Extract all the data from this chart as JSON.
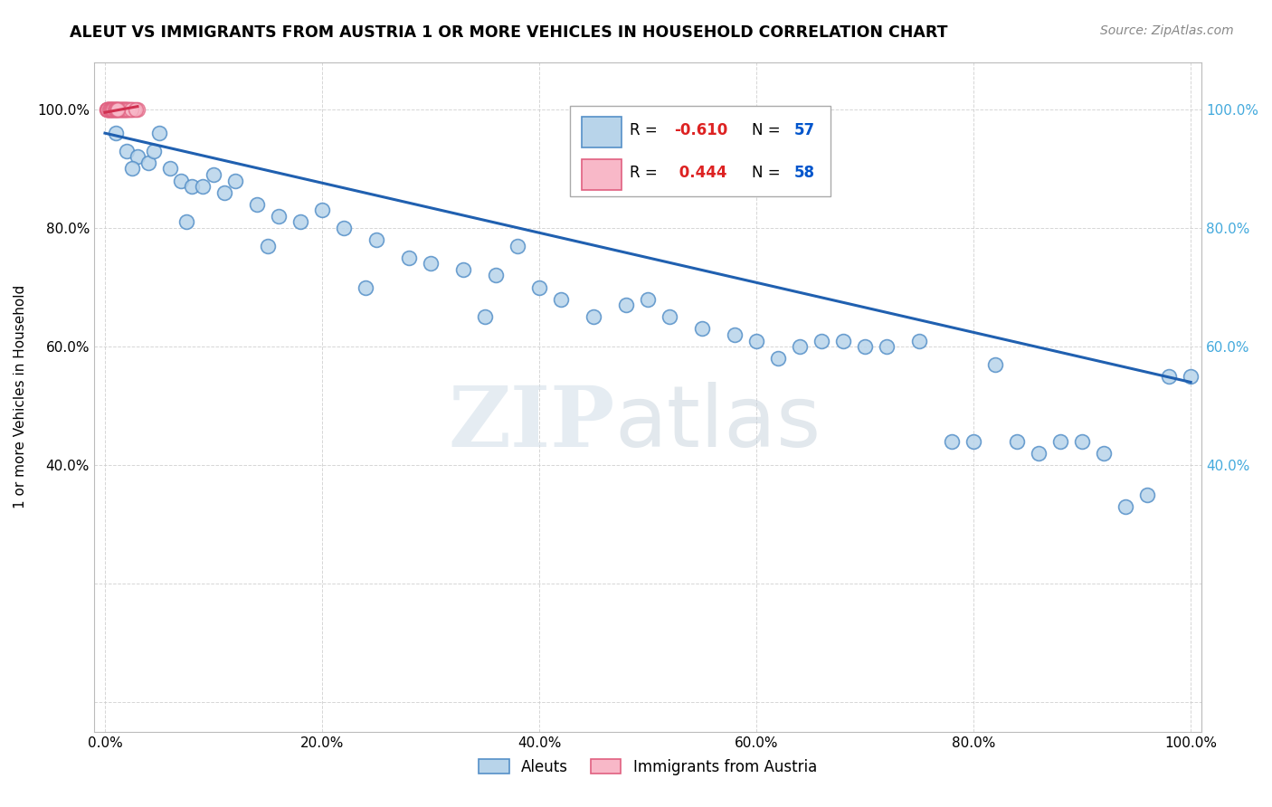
{
  "title": "ALEUT VS IMMIGRANTS FROM AUSTRIA 1 OR MORE VEHICLES IN HOUSEHOLD CORRELATION CHART",
  "source": "Source: ZipAtlas.com",
  "ylabel": "1 or more Vehicles in Household",
  "legend_r_blue": "-0.610",
  "legend_n_blue": "57",
  "legend_r_pink": "0.444",
  "legend_n_pink": "58",
  "legend_label_blue": "Aleuts",
  "legend_label_pink": "Immigrants from Austria",
  "blue_fill": "#b8d4ea",
  "blue_edge": "#5590c8",
  "pink_fill": "#f8b8c8",
  "pink_edge": "#e06080",
  "blue_line": "#2060b0",
  "pink_line": "#d03050",
  "bg": "#ffffff",
  "grid_color": "#cccccc",
  "aleut_x": [
    1.0,
    2.0,
    3.0,
    4.0,
    5.0,
    6.0,
    7.0,
    8.0,
    9.0,
    10.0,
    11.0,
    12.0,
    14.0,
    16.0,
    18.0,
    20.0,
    22.0,
    25.0,
    28.0,
    30.0,
    33.0,
    36.0,
    38.0,
    40.0,
    42.0,
    45.0,
    48.0,
    50.0,
    52.0,
    55.0,
    58.0,
    60.0,
    62.0,
    64.0,
    66.0,
    68.0,
    70.0,
    72.0,
    75.0,
    78.0,
    80.0,
    82.0,
    84.0,
    86.0,
    88.0,
    90.0,
    92.0,
    94.0,
    96.0,
    98.0,
    100.0,
    2.5,
    4.5,
    7.5,
    15.0,
    24.0,
    35.0
  ],
  "aleut_y": [
    96.0,
    93.0,
    92.0,
    91.0,
    96.0,
    90.0,
    88.0,
    87.0,
    87.0,
    89.0,
    86.0,
    88.0,
    84.0,
    82.0,
    81.0,
    83.0,
    80.0,
    78.0,
    75.0,
    74.0,
    73.0,
    72.0,
    77.0,
    70.0,
    68.0,
    65.0,
    67.0,
    68.0,
    65.0,
    63.0,
    62.0,
    61.0,
    58.0,
    60.0,
    61.0,
    61.0,
    60.0,
    60.0,
    61.0,
    44.0,
    44.0,
    57.0,
    44.0,
    42.0,
    44.0,
    44.0,
    42.0,
    33.0,
    35.0,
    55.0,
    55.0,
    90.0,
    93.0,
    81.0,
    77.0,
    70.0,
    65.0
  ],
  "austria_x": [
    0.5,
    0.8,
    1.0,
    1.2,
    1.4,
    1.6,
    1.8,
    2.0,
    2.2,
    2.5,
    3.0,
    0.3,
    0.4,
    0.6,
    0.7,
    0.9,
    1.1,
    1.3,
    1.5,
    1.7,
    1.9,
    2.1,
    2.3,
    2.7,
    0.2,
    0.25,
    0.35,
    0.45,
    0.55,
    0.65,
    0.75,
    0.85,
    0.95,
    1.05,
    1.15,
    1.25,
    1.35,
    1.45,
    1.55,
    1.65,
    1.75,
    1.85,
    1.95,
    2.15,
    2.4,
    2.8,
    0.15,
    0.22,
    0.28,
    0.38,
    0.48,
    0.58,
    0.68,
    0.78,
    0.88,
    0.98,
    1.08,
    1.18
  ],
  "austria_y": [
    100.0,
    100.0,
    100.0,
    100.0,
    100.0,
    100.0,
    100.0,
    100.0,
    100.0,
    100.0,
    100.0,
    100.0,
    100.0,
    100.0,
    100.0,
    100.0,
    100.0,
    100.0,
    100.0,
    100.0,
    100.0,
    100.0,
    100.0,
    100.0,
    100.0,
    100.0,
    100.0,
    100.0,
    100.0,
    100.0,
    100.0,
    100.0,
    100.0,
    100.0,
    100.0,
    100.0,
    100.0,
    100.0,
    100.0,
    100.0,
    100.0,
    100.0,
    100.0,
    100.0,
    100.0,
    100.0,
    100.0,
    100.0,
    100.0,
    100.0,
    100.0,
    100.0,
    100.0,
    100.0,
    100.0,
    100.0,
    100.0,
    100.0
  ],
  "blue_trend_x": [
    0,
    100
  ],
  "blue_trend_y": [
    96.0,
    54.0
  ],
  "pink_trend_x": [
    0,
    3.0
  ],
  "pink_trend_y": [
    99.5,
    100.5
  ],
  "xlim": [
    -1,
    101
  ],
  "ylim": [
    -5,
    108
  ],
  "xticks": [
    0,
    20,
    40,
    60,
    80,
    100
  ],
  "xtick_labels": [
    "0.0%",
    "20.0%",
    "40.0%",
    "60.0%",
    "80.0%",
    "100.0%"
  ],
  "yticks": [
    0,
    20,
    40,
    60,
    80,
    100
  ],
  "ytick_labels_left": [
    "",
    "",
    "40.0%",
    "60.0%",
    "80.0%",
    "100.0%"
  ],
  "ytick_labels_right": [
    "",
    "",
    "40.0%",
    "60.0%",
    "80.0%",
    "100.0%"
  ],
  "right_tick_color": "#44aadd"
}
